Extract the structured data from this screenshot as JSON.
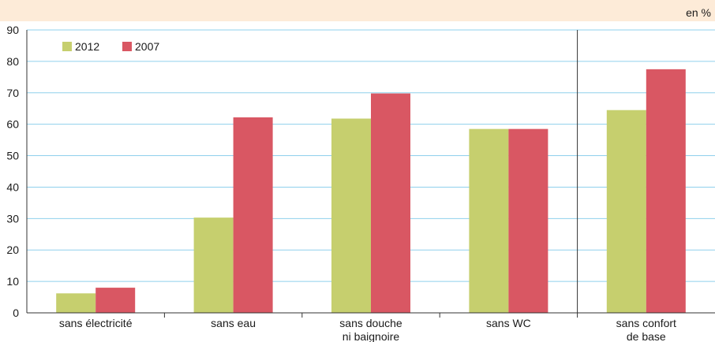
{
  "chart_data": {
    "type": "bar",
    "unit_label": "en %",
    "categories": [
      [
        "sans électricité"
      ],
      [
        "sans eau"
      ],
      [
        "sans douche",
        "ni baignoire"
      ],
      [
        "sans WC"
      ],
      [
        "sans confort",
        "de base"
      ]
    ],
    "series": [
      {
        "name": "2012",
        "color": "#c6cf6e",
        "values": [
          6.2,
          30.3,
          61.8,
          58.5,
          64.5
        ]
      },
      {
        "name": "2007",
        "color": "#d95763",
        "values": [
          8.0,
          62.2,
          69.8,
          58.5,
          77.5
        ]
      }
    ],
    "ylim": [
      0,
      90
    ],
    "yticks": [
      0,
      10,
      20,
      30,
      40,
      50,
      60,
      70,
      80,
      90
    ],
    "grid": true,
    "grid_color": "#8fd0ec",
    "header_band_color": "#fdebd8",
    "legend_position": "top-left",
    "separator_after_category_index": 3
  }
}
